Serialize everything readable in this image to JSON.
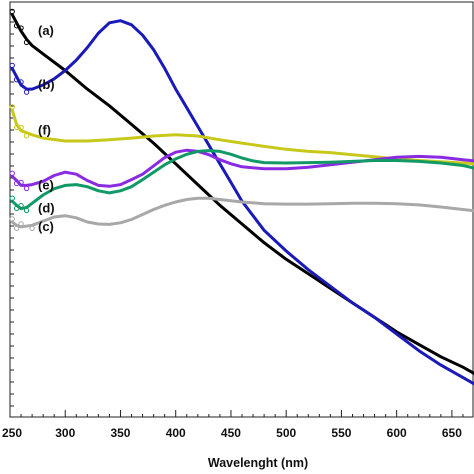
{
  "chart_data": {
    "type": "line",
    "title": "",
    "xlabel": "Wavelenght (nm)",
    "ylabel": "",
    "xlim": [
      250,
      670
    ],
    "ylim": [
      0,
      1
    ],
    "x_ticks": [
      250,
      300,
      350,
      400,
      450,
      500,
      550,
      600,
      650
    ],
    "x_tick_labels": [
      "250",
      "300",
      "350",
      "400",
      "450",
      "500",
      "550",
      "600",
      "650"
    ],
    "grid": false,
    "series": [
      {
        "name": "(a)",
        "color": "#000000",
        "points": [
          [
            252,
            0.97
          ],
          [
            256,
            0.95
          ],
          [
            260,
            0.93
          ],
          [
            265,
            0.91
          ],
          [
            270,
            0.895
          ],
          [
            280,
            0.875
          ],
          [
            300,
            0.835
          ],
          [
            320,
            0.79
          ],
          [
            340,
            0.75
          ],
          [
            360,
            0.705
          ],
          [
            380,
            0.66
          ],
          [
            400,
            0.61
          ],
          [
            420,
            0.56
          ],
          [
            440,
            0.51
          ],
          [
            460,
            0.465
          ],
          [
            480,
            0.42
          ],
          [
            500,
            0.38
          ],
          [
            520,
            0.345
          ],
          [
            540,
            0.31
          ],
          [
            560,
            0.275
          ],
          [
            580,
            0.24
          ],
          [
            600,
            0.205
          ],
          [
            620,
            0.175
          ],
          [
            640,
            0.145
          ],
          [
            660,
            0.12
          ],
          [
            670,
            0.105
          ]
        ]
      },
      {
        "name": "(b)",
        "color": "#1a1ab8",
        "points": [
          [
            252,
            0.84
          ],
          [
            256,
            0.82
          ],
          [
            260,
            0.8
          ],
          [
            265,
            0.79
          ],
          [
            270,
            0.79
          ],
          [
            280,
            0.8
          ],
          [
            290,
            0.815
          ],
          [
            300,
            0.835
          ],
          [
            310,
            0.86
          ],
          [
            320,
            0.89
          ],
          [
            330,
            0.925
          ],
          [
            340,
            0.95
          ],
          [
            350,
            0.955
          ],
          [
            360,
            0.945
          ],
          [
            370,
            0.92
          ],
          [
            380,
            0.885
          ],
          [
            390,
            0.84
          ],
          [
            400,
            0.79
          ],
          [
            410,
            0.745
          ],
          [
            420,
            0.7
          ],
          [
            430,
            0.655
          ],
          [
            440,
            0.61
          ],
          [
            450,
            0.565
          ],
          [
            460,
            0.52
          ],
          [
            480,
            0.45
          ],
          [
            500,
            0.4
          ],
          [
            520,
            0.355
          ],
          [
            540,
            0.315
          ],
          [
            560,
            0.275
          ],
          [
            580,
            0.24
          ],
          [
            600,
            0.2
          ],
          [
            620,
            0.16
          ],
          [
            640,
            0.125
          ],
          [
            660,
            0.095
          ],
          [
            670,
            0.08
          ]
        ]
      },
      {
        "name": "(f)",
        "color": "#c8c81a",
        "points": [
          [
            252,
            0.74
          ],
          [
            256,
            0.705
          ],
          [
            260,
            0.69
          ],
          [
            265,
            0.685
          ],
          [
            270,
            0.68
          ],
          [
            280,
            0.672
          ],
          [
            300,
            0.665
          ],
          [
            320,
            0.665
          ],
          [
            340,
            0.668
          ],
          [
            360,
            0.672
          ],
          [
            380,
            0.677
          ],
          [
            400,
            0.68
          ],
          [
            420,
            0.677
          ],
          [
            440,
            0.668
          ],
          [
            460,
            0.66
          ],
          [
            480,
            0.652
          ],
          [
            500,
            0.645
          ],
          [
            520,
            0.64
          ],
          [
            540,
            0.637
          ],
          [
            560,
            0.632
          ],
          [
            580,
            0.627
          ],
          [
            600,
            0.622
          ],
          [
            620,
            0.618
          ],
          [
            640,
            0.615
          ],
          [
            660,
            0.612
          ],
          [
            670,
            0.61
          ]
        ]
      },
      {
        "name": "(e)",
        "color": "#8a2be2",
        "points": [
          [
            252,
            0.58
          ],
          [
            256,
            0.57
          ],
          [
            260,
            0.558
          ],
          [
            265,
            0.558
          ],
          [
            270,
            0.56
          ],
          [
            280,
            0.568
          ],
          [
            290,
            0.582
          ],
          [
            300,
            0.59
          ],
          [
            310,
            0.585
          ],
          [
            320,
            0.57
          ],
          [
            330,
            0.558
          ],
          [
            340,
            0.556
          ],
          [
            350,
            0.56
          ],
          [
            360,
            0.572
          ],
          [
            370,
            0.585
          ],
          [
            380,
            0.605
          ],
          [
            390,
            0.625
          ],
          [
            400,
            0.638
          ],
          [
            410,
            0.643
          ],
          [
            420,
            0.64
          ],
          [
            430,
            0.632
          ],
          [
            440,
            0.62
          ],
          [
            450,
            0.61
          ],
          [
            460,
            0.603
          ],
          [
            480,
            0.598
          ],
          [
            500,
            0.598
          ],
          [
            520,
            0.602
          ],
          [
            540,
            0.608
          ],
          [
            560,
            0.614
          ],
          [
            580,
            0.62
          ],
          [
            600,
            0.626
          ],
          [
            620,
            0.628
          ],
          [
            640,
            0.626
          ],
          [
            660,
            0.62
          ],
          [
            670,
            0.617
          ]
        ]
      },
      {
        "name": "(d)",
        "color": "#119966",
        "points": [
          [
            252,
            0.52
          ],
          [
            256,
            0.51
          ],
          [
            260,
            0.502
          ],
          [
            265,
            0.505
          ],
          [
            270,
            0.515
          ],
          [
            280,
            0.535
          ],
          [
            290,
            0.55
          ],
          [
            300,
            0.558
          ],
          [
            310,
            0.56
          ],
          [
            320,
            0.555
          ],
          [
            330,
            0.545
          ],
          [
            340,
            0.54
          ],
          [
            350,
            0.545
          ],
          [
            360,
            0.555
          ],
          [
            370,
            0.572
          ],
          [
            380,
            0.59
          ],
          [
            390,
            0.608
          ],
          [
            400,
            0.622
          ],
          [
            410,
            0.633
          ],
          [
            420,
            0.64
          ],
          [
            430,
            0.642
          ],
          [
            440,
            0.64
          ],
          [
            450,
            0.633
          ],
          [
            460,
            0.624
          ],
          [
            470,
            0.617
          ],
          [
            480,
            0.613
          ],
          [
            500,
            0.612
          ],
          [
            520,
            0.613
          ],
          [
            540,
            0.614
          ],
          [
            560,
            0.616
          ],
          [
            580,
            0.618
          ],
          [
            600,
            0.618
          ],
          [
            620,
            0.616
          ],
          [
            640,
            0.612
          ],
          [
            660,
            0.606
          ],
          [
            670,
            0.6
          ]
        ]
      },
      {
        "name": "(c)",
        "color": "#a8a8a8",
        "points": [
          [
            252,
            0.47
          ],
          [
            256,
            0.462
          ],
          [
            260,
            0.458
          ],
          [
            270,
            0.462
          ],
          [
            280,
            0.472
          ],
          [
            290,
            0.482
          ],
          [
            300,
            0.485
          ],
          [
            310,
            0.48
          ],
          [
            320,
            0.47
          ],
          [
            330,
            0.465
          ],
          [
            340,
            0.464
          ],
          [
            350,
            0.468
          ],
          [
            360,
            0.476
          ],
          [
            370,
            0.488
          ],
          [
            380,
            0.5
          ],
          [
            390,
            0.51
          ],
          [
            400,
            0.518
          ],
          [
            410,
            0.524
          ],
          [
            420,
            0.527
          ],
          [
            430,
            0.527
          ],
          [
            440,
            0.524
          ],
          [
            460,
            0.518
          ],
          [
            480,
            0.514
          ],
          [
            500,
            0.513
          ],
          [
            520,
            0.513
          ],
          [
            540,
            0.514
          ],
          [
            560,
            0.515
          ],
          [
            580,
            0.515
          ],
          [
            600,
            0.514
          ],
          [
            620,
            0.511
          ],
          [
            640,
            0.506
          ],
          [
            660,
            0.5
          ],
          [
            670,
            0.497
          ]
        ]
      }
    ]
  }
}
